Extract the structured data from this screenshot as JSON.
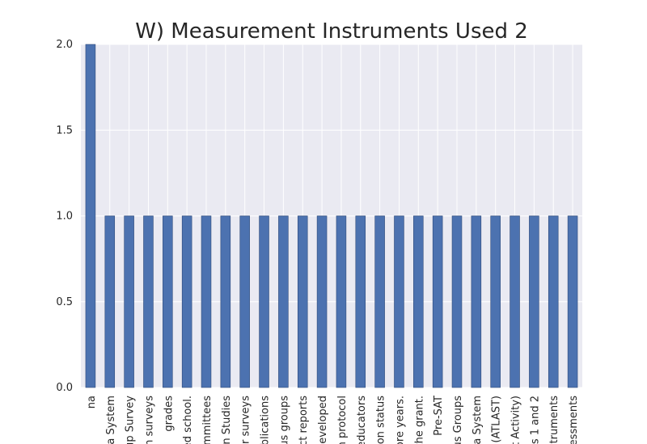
{
  "chart_data": {
    "type": "bar",
    "title": "W) Measurement Instruments Used 2",
    "xlabel": "",
    "ylabel": "",
    "ylim": [
      0,
      2.0
    ],
    "yticks": [
      "0.0",
      "0.5",
      "1.0",
      "1.5",
      "2.0"
    ],
    "grid": true,
    "legend": "none",
    "categories": [
      "na",
      "ra System",
      "up Survey",
      "n surveys",
      "grades",
      "ed school.",
      "ommittees",
      "n Studies",
      "er surveys",
      "blications",
      "us groups",
      "ct reports",
      "leveloped",
      "n protocol",
      "educators",
      "ion status",
      "ore years.",
      "the grant.",
      "Pre-SAT",
      "us Groups",
      "a System",
      "(ATLAST)",
      "rt Activity)",
      "s 1 and 2",
      "struments",
      "essments"
    ],
    "values": [
      2,
      1,
      1,
      1,
      1,
      1,
      1,
      1,
      1,
      1,
      1,
      1,
      1,
      1,
      1,
      1,
      1,
      1,
      1,
      1,
      1,
      1,
      1,
      1,
      1,
      1
    ],
    "colors": {
      "bar": "#4c72b0",
      "bar_edge": "#2e4a7a",
      "plot_bg": "#eaeaf2",
      "grid": "#ffffff",
      "text": "#262626"
    }
  }
}
